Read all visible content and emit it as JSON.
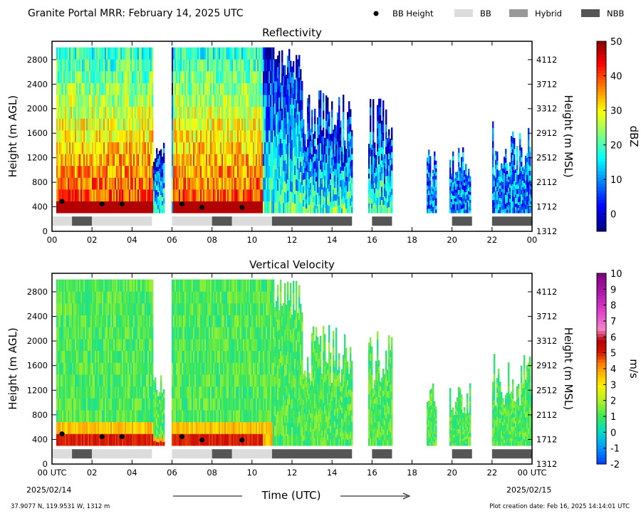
{
  "header": {
    "title": "Granite Portal MRR:  February 14, 2025 UTC",
    "legend": [
      {
        "key": "bb_height",
        "label": "BB Height",
        "swatch": "dot",
        "color": "#000000"
      },
      {
        "key": "bb",
        "label": "BB",
        "swatch": "rect",
        "color": "#dcdcdc"
      },
      {
        "key": "hybrid",
        "label": "Hybrid",
        "swatch": "rect",
        "color": "#999999"
      },
      {
        "key": "nbb",
        "label": "NBB",
        "swatch": "rect",
        "color": "#555555"
      }
    ]
  },
  "footer": {
    "location": "37.9077 N, 119.9531 W, 1312 m",
    "creation": "Plot creation date: Feb 16, 2025 14:14:01 UTC",
    "xlabel": "Time (UTC)",
    "start_date": "2025/02/14",
    "end_date": "2025/02/15"
  },
  "chart_data": [
    {
      "type": "heatmap",
      "title": "Reflectivity",
      "ylabel": "Height (m AGL)",
      "y2label": "Height (m MSL)",
      "xlabel": "",
      "xlim": [
        0,
        24
      ],
      "ylim": [
        0,
        3100
      ],
      "x_tick_labels": [
        "00",
        "02",
        "04",
        "06",
        "08",
        "10",
        "12",
        "14",
        "16",
        "18",
        "20",
        "22",
        "00"
      ],
      "y_ticks": [
        0,
        400,
        800,
        1200,
        1600,
        2000,
        2400,
        2800
      ],
      "y2_tick_labels": [
        "1312",
        "1712",
        "2112",
        "2512",
        "2912",
        "3312",
        "3712",
        "4112"
      ],
      "colorbar": {
        "label": "dBZ",
        "min": -5,
        "max": 50,
        "ticks": [
          0,
          10,
          20,
          30,
          40,
          50
        ],
        "colormap": "jet"
      },
      "regime_bars": [
        {
          "start": 0,
          "end": 1,
          "regime": "BB"
        },
        {
          "start": 1,
          "end": 2,
          "regime": "NBB"
        },
        {
          "start": 2,
          "end": 5,
          "regime": "BB"
        },
        {
          "start": 6,
          "end": 8,
          "regime": "BB"
        },
        {
          "start": 8,
          "end": 9,
          "regime": "NBB"
        },
        {
          "start": 9,
          "end": 11,
          "regime": "BB"
        },
        {
          "start": 11,
          "end": 15,
          "regime": "NBB"
        },
        {
          "start": 16,
          "end": 17,
          "regime": "NBB"
        },
        {
          "start": 20,
          "end": 21,
          "regime": "NBB"
        },
        {
          "start": 22,
          "end": 24,
          "regime": "NBB"
        }
      ],
      "bb_height_points": [
        {
          "x": 0.5,
          "y": 490
        },
        {
          "x": 2.5,
          "y": 445
        },
        {
          "x": 3.5,
          "y": 445
        },
        {
          "x": 6.5,
          "y": 445
        },
        {
          "x": 7.5,
          "y": 390
        },
        {
          "x": 9.5,
          "y": 390
        }
      ]
    },
    {
      "type": "heatmap",
      "title": "Vertical Velocity",
      "ylabel": "Height (m AGL)",
      "y2label": "Height (m MSL)",
      "xlabel": "Time (UTC)",
      "xlim": [
        0,
        24
      ],
      "ylim": [
        0,
        3100
      ],
      "x_tick_labels": [
        "00 UTC",
        "02",
        "04",
        "06",
        "08",
        "10",
        "12",
        "14",
        "16",
        "18",
        "20",
        "22",
        "00 UTC"
      ],
      "y_ticks": [
        0,
        400,
        800,
        1200,
        1600,
        2000,
        2400,
        2800
      ],
      "y2_tick_labels": [
        "1312",
        "1712",
        "2112",
        "2512",
        "2912",
        "3312",
        "3712",
        "4112"
      ],
      "colorbar": {
        "label": "m/s",
        "min": -2,
        "max": 10,
        "ticks": [
          -2,
          -1,
          0,
          1,
          2,
          3,
          4,
          5,
          6,
          7,
          8,
          9,
          10
        ],
        "colormap": "velocity"
      },
      "regime_bars": [
        {
          "start": 0,
          "end": 1,
          "regime": "BB"
        },
        {
          "start": 1,
          "end": 2,
          "regime": "NBB"
        },
        {
          "start": 2,
          "end": 5,
          "regime": "BB"
        },
        {
          "start": 6,
          "end": 8,
          "regime": "BB"
        },
        {
          "start": 8,
          "end": 9,
          "regime": "NBB"
        },
        {
          "start": 9,
          "end": 11,
          "regime": "BB"
        },
        {
          "start": 11,
          "end": 15,
          "regime": "NBB"
        },
        {
          "start": 16,
          "end": 17,
          "regime": "NBB"
        },
        {
          "start": 20,
          "end": 21,
          "regime": "NBB"
        },
        {
          "start": 22,
          "end": 24,
          "regime": "NBB"
        }
      ],
      "bb_height_points": [
        {
          "x": 0.5,
          "y": 490
        },
        {
          "x": 2.5,
          "y": 445
        },
        {
          "x": 3.5,
          "y": 445
        },
        {
          "x": 6.5,
          "y": 445
        },
        {
          "x": 7.5,
          "y": 390
        },
        {
          "x": 9.5,
          "y": 390
        }
      ]
    }
  ]
}
